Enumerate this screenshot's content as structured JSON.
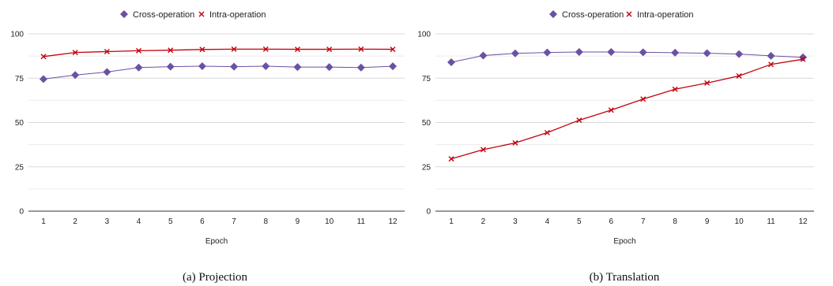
{
  "colors": {
    "cross": "#6a51a3",
    "intra": "#c4000d",
    "grid": "#d9d9d9",
    "axis": "#333333"
  },
  "legend": {
    "cross_label": "Cross-operation",
    "intra_label": "Intra-operation"
  },
  "chart_data": [
    {
      "type": "line",
      "caption": "(a) Projection",
      "xlabel": "Epoch",
      "ylabel": "",
      "categories": [
        "1",
        "2",
        "3",
        "4",
        "5",
        "6",
        "7",
        "8",
        "9",
        "10",
        "11",
        "12"
      ],
      "ylim": [
        0,
        100
      ],
      "yticks": [
        0,
        25,
        50,
        75,
        100
      ],
      "legend_position": "top",
      "grid": true,
      "series": [
        {
          "name": "Cross-operation",
          "marker": "diamond",
          "values": [
            74.5,
            76.8,
            78.5,
            81,
            81.5,
            81.8,
            81.5,
            81.8,
            81.3,
            81.3,
            81,
            81.7
          ]
        },
        {
          "name": "Intra-operation",
          "marker": "x",
          "values": [
            87.2,
            89.5,
            90,
            90.5,
            90.8,
            91.2,
            91.4,
            91.4,
            91.3,
            91.3,
            91.4,
            91.3
          ]
        }
      ]
    },
    {
      "type": "line",
      "caption": "(b) Translation",
      "xlabel": "Epoch",
      "ylabel": "",
      "categories": [
        "1",
        "2",
        "3",
        "4",
        "5",
        "6",
        "7",
        "8",
        "9",
        "10",
        "11",
        "12"
      ],
      "ylim": [
        0,
        100
      ],
      "yticks": [
        0,
        25,
        50,
        75,
        100
      ],
      "legend_position": "top",
      "grid": true,
      "series": [
        {
          "name": "Cross-operation",
          "marker": "diamond",
          "values": [
            84,
            87.8,
            89,
            89.5,
            89.8,
            89.8,
            89.6,
            89.4,
            89.1,
            88.6,
            87.6,
            86.8
          ]
        },
        {
          "name": "Intra-operation",
          "marker": "x",
          "values": [
            29.5,
            34.7,
            38.5,
            44.3,
            51.3,
            57,
            63.2,
            68.8,
            72.3,
            76.3,
            82.8,
            85.7
          ]
        }
      ]
    }
  ]
}
